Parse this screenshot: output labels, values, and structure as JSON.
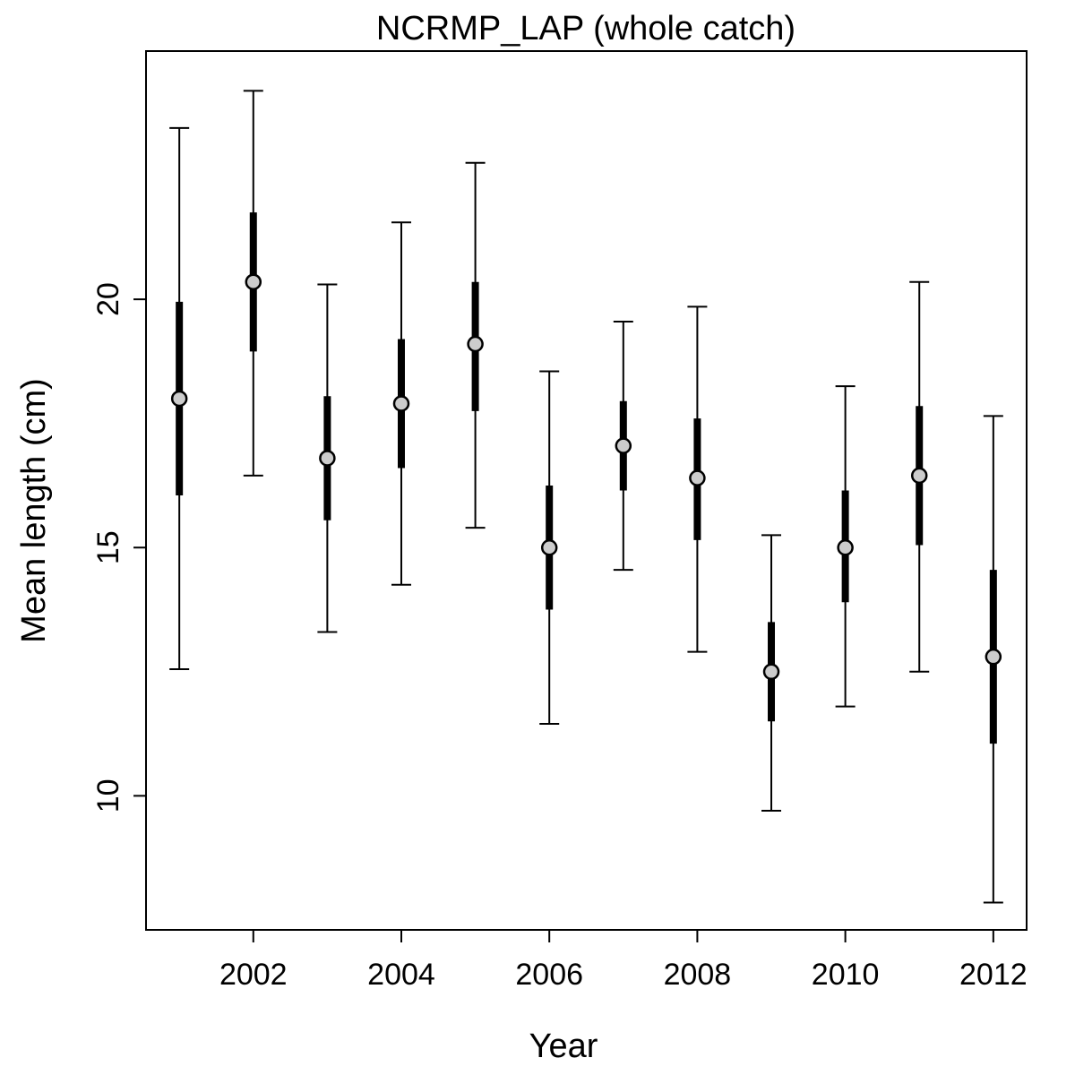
{
  "chart_data": {
    "type": "scatter",
    "title": "NCRMP_LAP (whole catch)",
    "xlabel": "Year",
    "ylabel": "Mean length (cm)",
    "xlim": [
      2000.55,
      2012.45
    ],
    "ylim": [
      7.3,
      25.0
    ],
    "x_ticks": [
      2002,
      2004,
      2006,
      2008,
      2010,
      2012
    ],
    "y_ticks": [
      10,
      15,
      20
    ],
    "grid": false,
    "marker_fill": "#cccccc",
    "line_color": "#000000",
    "series": [
      {
        "points": [
          {
            "x": 2001,
            "mean": 18.0,
            "inner_low": 16.05,
            "inner_high": 19.95,
            "outer_low": 12.55,
            "outer_high": 23.45
          },
          {
            "x": 2002,
            "mean": 20.35,
            "inner_low": 18.95,
            "inner_high": 21.75,
            "outer_low": 16.45,
            "outer_high": 24.2
          },
          {
            "x": 2003,
            "mean": 16.8,
            "inner_low": 15.55,
            "inner_high": 18.05,
            "outer_low": 13.3,
            "outer_high": 20.3
          },
          {
            "x": 2004,
            "mean": 17.9,
            "inner_low": 16.6,
            "inner_high": 19.2,
            "outer_low": 14.25,
            "outer_high": 21.55
          },
          {
            "x": 2005,
            "mean": 19.1,
            "inner_low": 17.75,
            "inner_high": 20.35,
            "outer_low": 15.4,
            "outer_high": 22.75
          },
          {
            "x": 2006,
            "mean": 15.0,
            "inner_low": 13.75,
            "inner_high": 16.25,
            "outer_low": 11.45,
            "outer_high": 18.55
          },
          {
            "x": 2007,
            "mean": 17.05,
            "inner_low": 16.15,
            "inner_high": 17.95,
            "outer_low": 14.55,
            "outer_high": 19.55
          },
          {
            "x": 2008,
            "mean": 16.4,
            "inner_low": 15.15,
            "inner_high": 17.6,
            "outer_low": 12.9,
            "outer_high": 19.85
          },
          {
            "x": 2009,
            "mean": 12.5,
            "inner_low": 11.5,
            "inner_high": 13.5,
            "outer_low": 9.7,
            "outer_high": 15.25
          },
          {
            "x": 2010,
            "mean": 15.0,
            "inner_low": 13.9,
            "inner_high": 16.15,
            "outer_low": 11.8,
            "outer_high": 18.25
          },
          {
            "x": 2011,
            "mean": 16.45,
            "inner_low": 15.05,
            "inner_high": 17.85,
            "outer_low": 12.5,
            "outer_high": 20.35
          },
          {
            "x": 2012,
            "mean": 12.8,
            "inner_low": 11.05,
            "inner_high": 14.55,
            "outer_low": 7.85,
            "outer_high": 17.65
          }
        ]
      }
    ]
  }
}
